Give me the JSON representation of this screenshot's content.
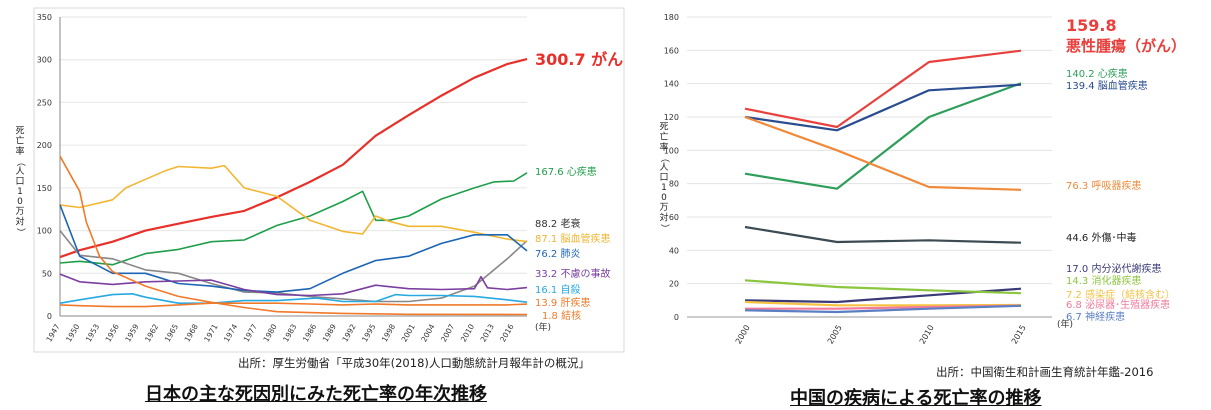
{
  "japan": {
    "caption": "日本の主な死因別にみた死亡率の年次推移",
    "source": "出所：厚生労働省「平成30年(2018)人口動態統計月報年計の概況」",
    "chart_data": {
      "type": "line",
      "ylabel": "死亡率（人口10万対）",
      "xunit": "(年)",
      "ylim": [
        0,
        350
      ],
      "yticks": [
        0,
        50,
        100,
        150,
        200,
        250,
        300,
        350
      ],
      "xlim": [
        1947,
        2018
      ],
      "xticks": [
        "1947",
        "1950",
        "1953",
        "1956",
        "1959",
        "1962",
        "1965",
        "1968",
        "1971",
        "1974",
        "1977",
        "1980",
        "1983",
        "1986",
        "1989",
        "1992",
        "1995",
        "1998",
        "2001",
        "2004",
        "2007",
        "2010",
        "2013",
        "2016"
      ],
      "series": [
        {
          "name": "がん",
          "label": "300.7 がん",
          "color": "#e8302a",
          "points": [
            [
              1947,
              69
            ],
            [
              1950,
              77
            ],
            [
              1955,
              87
            ],
            [
              1960,
              100
            ],
            [
              1965,
              108
            ],
            [
              1970,
              116
            ],
            [
              1975,
              123
            ],
            [
              1980,
              139
            ],
            [
              1985,
              157
            ],
            [
              1990,
              177
            ],
            [
              1995,
              211
            ],
            [
              2000,
              235
            ],
            [
              2005,
              258
            ],
            [
              2010,
              279
            ],
            [
              2015,
              295
            ],
            [
              2018,
              300.7
            ]
          ]
        },
        {
          "name": "心疾患",
          "label": "167.6 心疾患",
          "color": "#1f9e4a",
          "points": [
            [
              1947,
              62
            ],
            [
              1950,
              64
            ],
            [
              1955,
              60
            ],
            [
              1960,
              73
            ],
            [
              1965,
              78
            ],
            [
              1970,
              87
            ],
            [
              1975,
              89
            ],
            [
              1980,
              106
            ],
            [
              1985,
              117
            ],
            [
              1990,
              134
            ],
            [
              1993,
              146
            ],
            [
              1995,
              112
            ],
            [
              1997,
              112
            ],
            [
              2000,
              117
            ],
            [
              2005,
              137
            ],
            [
              2010,
              150
            ],
            [
              2013,
              157
            ],
            [
              2016,
              158
            ],
            [
              2018,
              167.6
            ]
          ]
        },
        {
          "name": "老衰",
          "label": "88.2 老衰",
          "color": "#888888",
          "points": [
            [
              1947,
              100
            ],
            [
              1950,
              71
            ],
            [
              1955,
              67
            ],
            [
              1960,
              54
            ],
            [
              1965,
              50
            ],
            [
              1970,
              38
            ],
            [
              1975,
              28
            ],
            [
              1980,
              27
            ],
            [
              1985,
              23
            ],
            [
              1990,
              20
            ],
            [
              1995,
              17
            ],
            [
              2000,
              17
            ],
            [
              2005,
              21
            ],
            [
              2010,
              35
            ],
            [
              2015,
              67
            ],
            [
              2018,
              88.2
            ]
          ]
        },
        {
          "name": "脳血管疾患",
          "label": "87.1 脳血管疾患",
          "color": "#f2b632",
          "points": [
            [
              1947,
              130
            ],
            [
              1950,
              127
            ],
            [
              1955,
              136
            ],
            [
              1957,
              150
            ],
            [
              1960,
              160
            ],
            [
              1963,
              170
            ],
            [
              1965,
              175
            ],
            [
              1970,
              173
            ],
            [
              1972,
              176
            ],
            [
              1975,
              150
            ],
            [
              1980,
              140
            ],
            [
              1985,
              112
            ],
            [
              1990,
              99
            ],
            [
              1993,
              96
            ],
            [
              1995,
              117
            ],
            [
              1997,
              111
            ],
            [
              2000,
              105
            ],
            [
              2005,
              105
            ],
            [
              2010,
              98
            ],
            [
              2015,
              90
            ],
            [
              2018,
              87.1
            ]
          ]
        },
        {
          "name": "肺炎",
          "label": "76.2 肺炎",
          "color": "#1c64b4",
          "points": [
            [
              1947,
              130
            ],
            [
              1950,
              70
            ],
            [
              1955,
              50
            ],
            [
              1960,
              50
            ],
            [
              1965,
              38
            ],
            [
              1970,
              35
            ],
            [
              1975,
              30
            ],
            [
              1980,
              28
            ],
            [
              1985,
              32
            ],
            [
              1990,
              50
            ],
            [
              1995,
              65
            ],
            [
              2000,
              70
            ],
            [
              2005,
              85
            ],
            [
              2010,
              95
            ],
            [
              2015,
              95
            ],
            [
              2018,
              76.2
            ]
          ]
        },
        {
          "name": "不慮の事故",
          "label": "33.2 不慮の事故",
          "color": "#7b3fa0",
          "points": [
            [
              1947,
              49
            ],
            [
              1950,
              40
            ],
            [
              1955,
              37
            ],
            [
              1960,
              40
            ],
            [
              1965,
              41
            ],
            [
              1970,
              42
            ],
            [
              1975,
              31
            ],
            [
              1980,
              25
            ],
            [
              1985,
              24
            ],
            [
              1990,
              26
            ],
            [
              1995,
              36
            ],
            [
              2000,
              32
            ],
            [
              2005,
              31
            ],
            [
              2010,
              32
            ],
            [
              2011,
              46
            ],
            [
              2012,
              33
            ],
            [
              2015,
              31
            ],
            [
              2018,
              33.2
            ]
          ]
        },
        {
          "name": "自殺",
          "label": "16.1 自殺",
          "color": "#27a9e1",
          "points": [
            [
              1947,
              15
            ],
            [
              1950,
              19
            ],
            [
              1955,
              25
            ],
            [
              1958,
              26
            ],
            [
              1960,
              22
            ],
            [
              1965,
              15
            ],
            [
              1970,
              15
            ],
            [
              1975,
              18
            ],
            [
              1980,
              18
            ],
            [
              1986,
              21
            ],
            [
              1990,
              17
            ],
            [
              1995,
              17
            ],
            [
              1998,
              25
            ],
            [
              2000,
              24
            ],
            [
              2005,
              24
            ],
            [
              2010,
              23
            ],
            [
              2015,
              19
            ],
            [
              2018,
              16.1
            ]
          ]
        },
        {
          "name": "肝疾患",
          "label": "13.9 肝疾患",
          "color": "#f07a2a",
          "points": [
            [
              1947,
              13
            ],
            [
              1950,
              12
            ],
            [
              1955,
              11
            ],
            [
              1960,
              11
            ],
            [
              1965,
              13
            ],
            [
              1970,
              15
            ],
            [
              1975,
              15
            ],
            [
              1980,
              15
            ],
            [
              1985,
              14
            ],
            [
              1990,
              13
            ],
            [
              1995,
              14
            ],
            [
              2000,
              13
            ],
            [
              2005,
              13
            ],
            [
              2010,
              13
            ],
            [
              2015,
              13
            ],
            [
              2018,
              13.9
            ]
          ]
        },
        {
          "name": "結核",
          "label": "1.8 結核",
          "color": "#f07a2a",
          "points": [
            [
              1947,
              187
            ],
            [
              1950,
              146
            ],
            [
              1951,
              110
            ],
            [
              1953,
              70
            ],
            [
              1955,
              52
            ],
            [
              1960,
              35
            ],
            [
              1965,
              23
            ],
            [
              1970,
              16
            ],
            [
              1975,
              10
            ],
            [
              1980,
              5
            ],
            [
              1990,
              3
            ],
            [
              2000,
              2
            ],
            [
              2018,
              1.8
            ]
          ]
        }
      ]
    }
  },
  "china": {
    "caption": "中国の疾病による死亡率の推移",
    "source": "出所：中国衛生和計画生育統計年鑑-2016",
    "chart_data": {
      "type": "line",
      "ylabel": "死亡率（人口10万対）",
      "xunit": "(年)",
      "ylim": [
        0,
        180
      ],
      "yticks": [
        0,
        20,
        40,
        60,
        80,
        100,
        120,
        140,
        160,
        180
      ],
      "categories": [
        "2000",
        "2005",
        "2010",
        "2015"
      ],
      "series": [
        {
          "name": "悪性腫瘍（がん）",
          "value_label": "159.8",
          "label": "悪性腫瘍（がん）",
          "color": "#e8403c",
          "values": [
            125,
            114,
            153,
            159.8
          ]
        },
        {
          "name": "心疾患",
          "label": "140.2 心疾患",
          "color": "#2e9e5a",
          "values": [
            86,
            77,
            120,
            140.2
          ]
        },
        {
          "name": "脳血管疾患",
          "label": "139.4 脳血管疾患",
          "color": "#2a4d8f",
          "values": [
            120,
            112,
            136,
            139.4
          ]
        },
        {
          "name": "呼吸器疾患",
          "label": "76.3 呼吸器疾患",
          "color": "#f08a3a",
          "values": [
            120,
            100,
            78,
            76.3
          ]
        },
        {
          "name": "外傷・中毒",
          "label": "44.6 外傷･中毒",
          "color": "#3c4a52",
          "values": [
            54,
            45,
            46,
            44.6
          ]
        },
        {
          "name": "内分泌代謝疾患",
          "label": "17.0 内分泌代謝疾患",
          "color": "#3b3a78",
          "values": [
            10,
            9,
            13,
            17.0
          ]
        },
        {
          "name": "消化器疾患",
          "label": "14.3 消化器疾患",
          "color": "#8cc63f",
          "values": [
            22,
            18,
            16,
            14.3
          ]
        },
        {
          "name": "感染症（結核含む）",
          "label": "7.2 感染症（結核含む）",
          "color": "#f5c242",
          "values": [
            9,
            7,
            7,
            7.2
          ]
        },
        {
          "name": "泌尿器・生殖器疾患",
          "label": "6.8 泌尿器･生殖器疾患",
          "color": "#f27b9b",
          "values": [
            5,
            5,
            6,
            6.8
          ]
        },
        {
          "name": "神経疾患",
          "label": "6.7 神経疾患",
          "color": "#5b7fc4",
          "values": [
            4,
            3,
            5,
            6.7
          ]
        }
      ]
    }
  }
}
